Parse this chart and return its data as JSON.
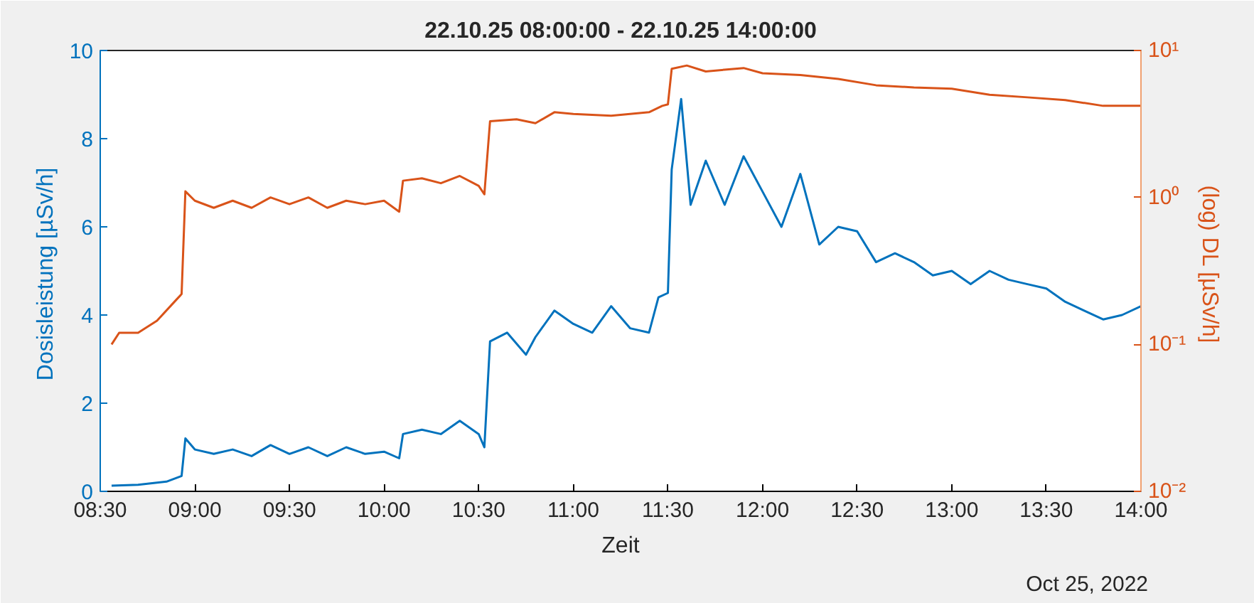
{
  "chart_data": {
    "type": "line",
    "title": "22.10.25 08:00:00 - 22.10.25 14:00:00",
    "xlabel": "Zeit",
    "ylabel": "Dosisleistung  [µSv/h]",
    "y2label": "(log)  DL  [µSv/h]",
    "annotations": [
      "Oct 25, 2022"
    ],
    "xlim": [
      8.5,
      14
    ],
    "xticks": [
      {
        "value": 8.5,
        "label": "08:30"
      },
      {
        "value": 9,
        "label": "09:00"
      },
      {
        "value": 9.5,
        "label": "09:30"
      },
      {
        "value": 10,
        "label": "10:00"
      },
      {
        "value": 10.5,
        "label": "10:30"
      },
      {
        "value": 11,
        "label": "11:00"
      },
      {
        "value": 11.5,
        "label": "11:30"
      },
      {
        "value": 12,
        "label": "12:00"
      },
      {
        "value": 12.5,
        "label": "12:30"
      },
      {
        "value": 13,
        "label": "13:00"
      },
      {
        "value": 13.5,
        "label": "13:30"
      },
      {
        "value": 14,
        "label": "14:00"
      }
    ],
    "ylim": [
      0,
      10
    ],
    "yticks": [
      0,
      2,
      4,
      6,
      8,
      10
    ],
    "y2lim": [
      0.01,
      10
    ],
    "y2ticks": [
      {
        "value": 0.01,
        "label": "10⁻²"
      },
      {
        "value": 0.1,
        "label": "10⁻¹"
      },
      {
        "value": 1,
        "label": "10⁰"
      },
      {
        "value": 10,
        "label": "10¹"
      }
    ],
    "log": "y2",
    "grid": false,
    "line_style": "solid",
    "marker": "none",
    "series": [
      {
        "color": "#0072bd",
        "x": [
          8.56,
          8.7,
          8.85,
          8.93,
          8.95,
          9.0,
          9.1,
          9.2,
          9.3,
          9.4,
          9.5,
          9.6,
          9.7,
          9.8,
          9.9,
          10.0,
          10.08,
          10.1,
          10.2,
          10.3,
          10.4,
          10.5,
          10.53,
          10.56,
          10.65,
          10.75,
          10.8,
          10.9,
          11.0,
          11.1,
          11.2,
          11.3,
          11.4,
          11.45,
          11.5,
          11.52,
          11.57,
          11.62,
          11.7,
          11.8,
          11.9,
          12.0,
          12.1,
          12.2,
          12.3,
          12.4,
          12.5,
          12.6,
          12.7,
          12.8,
          12.9,
          13.0,
          13.1,
          13.2,
          13.3,
          13.4,
          13.5,
          13.6,
          13.7,
          13.8,
          13.9,
          14.0
        ],
        "values": [
          0.13,
          0.15,
          0.22,
          0.35,
          1.2,
          0.95,
          0.85,
          0.95,
          0.8,
          1.05,
          0.85,
          1.0,
          0.8,
          1.0,
          0.85,
          0.9,
          0.75,
          1.3,
          1.4,
          1.3,
          1.6,
          1.3,
          1.0,
          3.4,
          3.6,
          3.1,
          3.5,
          4.1,
          3.8,
          3.6,
          4.2,
          3.7,
          3.6,
          4.4,
          4.5,
          7.3,
          8.9,
          6.5,
          7.5,
          6.5,
          7.6,
          6.8,
          6.0,
          7.2,
          5.6,
          6.0,
          5.9,
          5.2,
          5.4,
          5.2,
          4.9,
          5.0,
          4.7,
          5.0,
          4.8,
          4.7,
          4.6,
          4.3,
          4.1,
          3.9,
          4.0,
          4.2
        ]
      },
      {
        "color": "#d95319",
        "axis": "y2",
        "x": [
          8.56,
          8.6,
          8.7,
          8.8,
          8.9,
          8.93,
          8.95,
          9.0,
          9.1,
          9.2,
          9.3,
          9.4,
          9.5,
          9.6,
          9.7,
          9.8,
          9.9,
          10.0,
          10.08,
          10.1,
          10.2,
          10.3,
          10.4,
          10.5,
          10.53,
          10.56,
          10.7,
          10.8,
          10.9,
          11.0,
          11.2,
          11.4,
          11.47,
          11.5,
          11.52,
          11.6,
          11.7,
          11.8,
          11.9,
          12.0,
          12.2,
          12.4,
          12.6,
          12.8,
          13.0,
          13.2,
          13.4,
          13.6,
          13.8,
          14.0
        ],
        "values": [
          0.1,
          0.12,
          0.12,
          0.145,
          0.2,
          0.22,
          1.1,
          0.95,
          0.85,
          0.95,
          0.85,
          1.0,
          0.9,
          1.0,
          0.85,
          0.95,
          0.9,
          0.95,
          0.8,
          1.3,
          1.35,
          1.25,
          1.4,
          1.2,
          1.05,
          3.3,
          3.4,
          3.2,
          3.8,
          3.7,
          3.6,
          3.8,
          4.2,
          4.3,
          7.5,
          7.9,
          7.2,
          7.4,
          7.6,
          7.0,
          6.8,
          6.4,
          5.8,
          5.6,
          5.5,
          5.0,
          4.8,
          4.6,
          4.2,
          4.2
        ]
      }
    ]
  }
}
